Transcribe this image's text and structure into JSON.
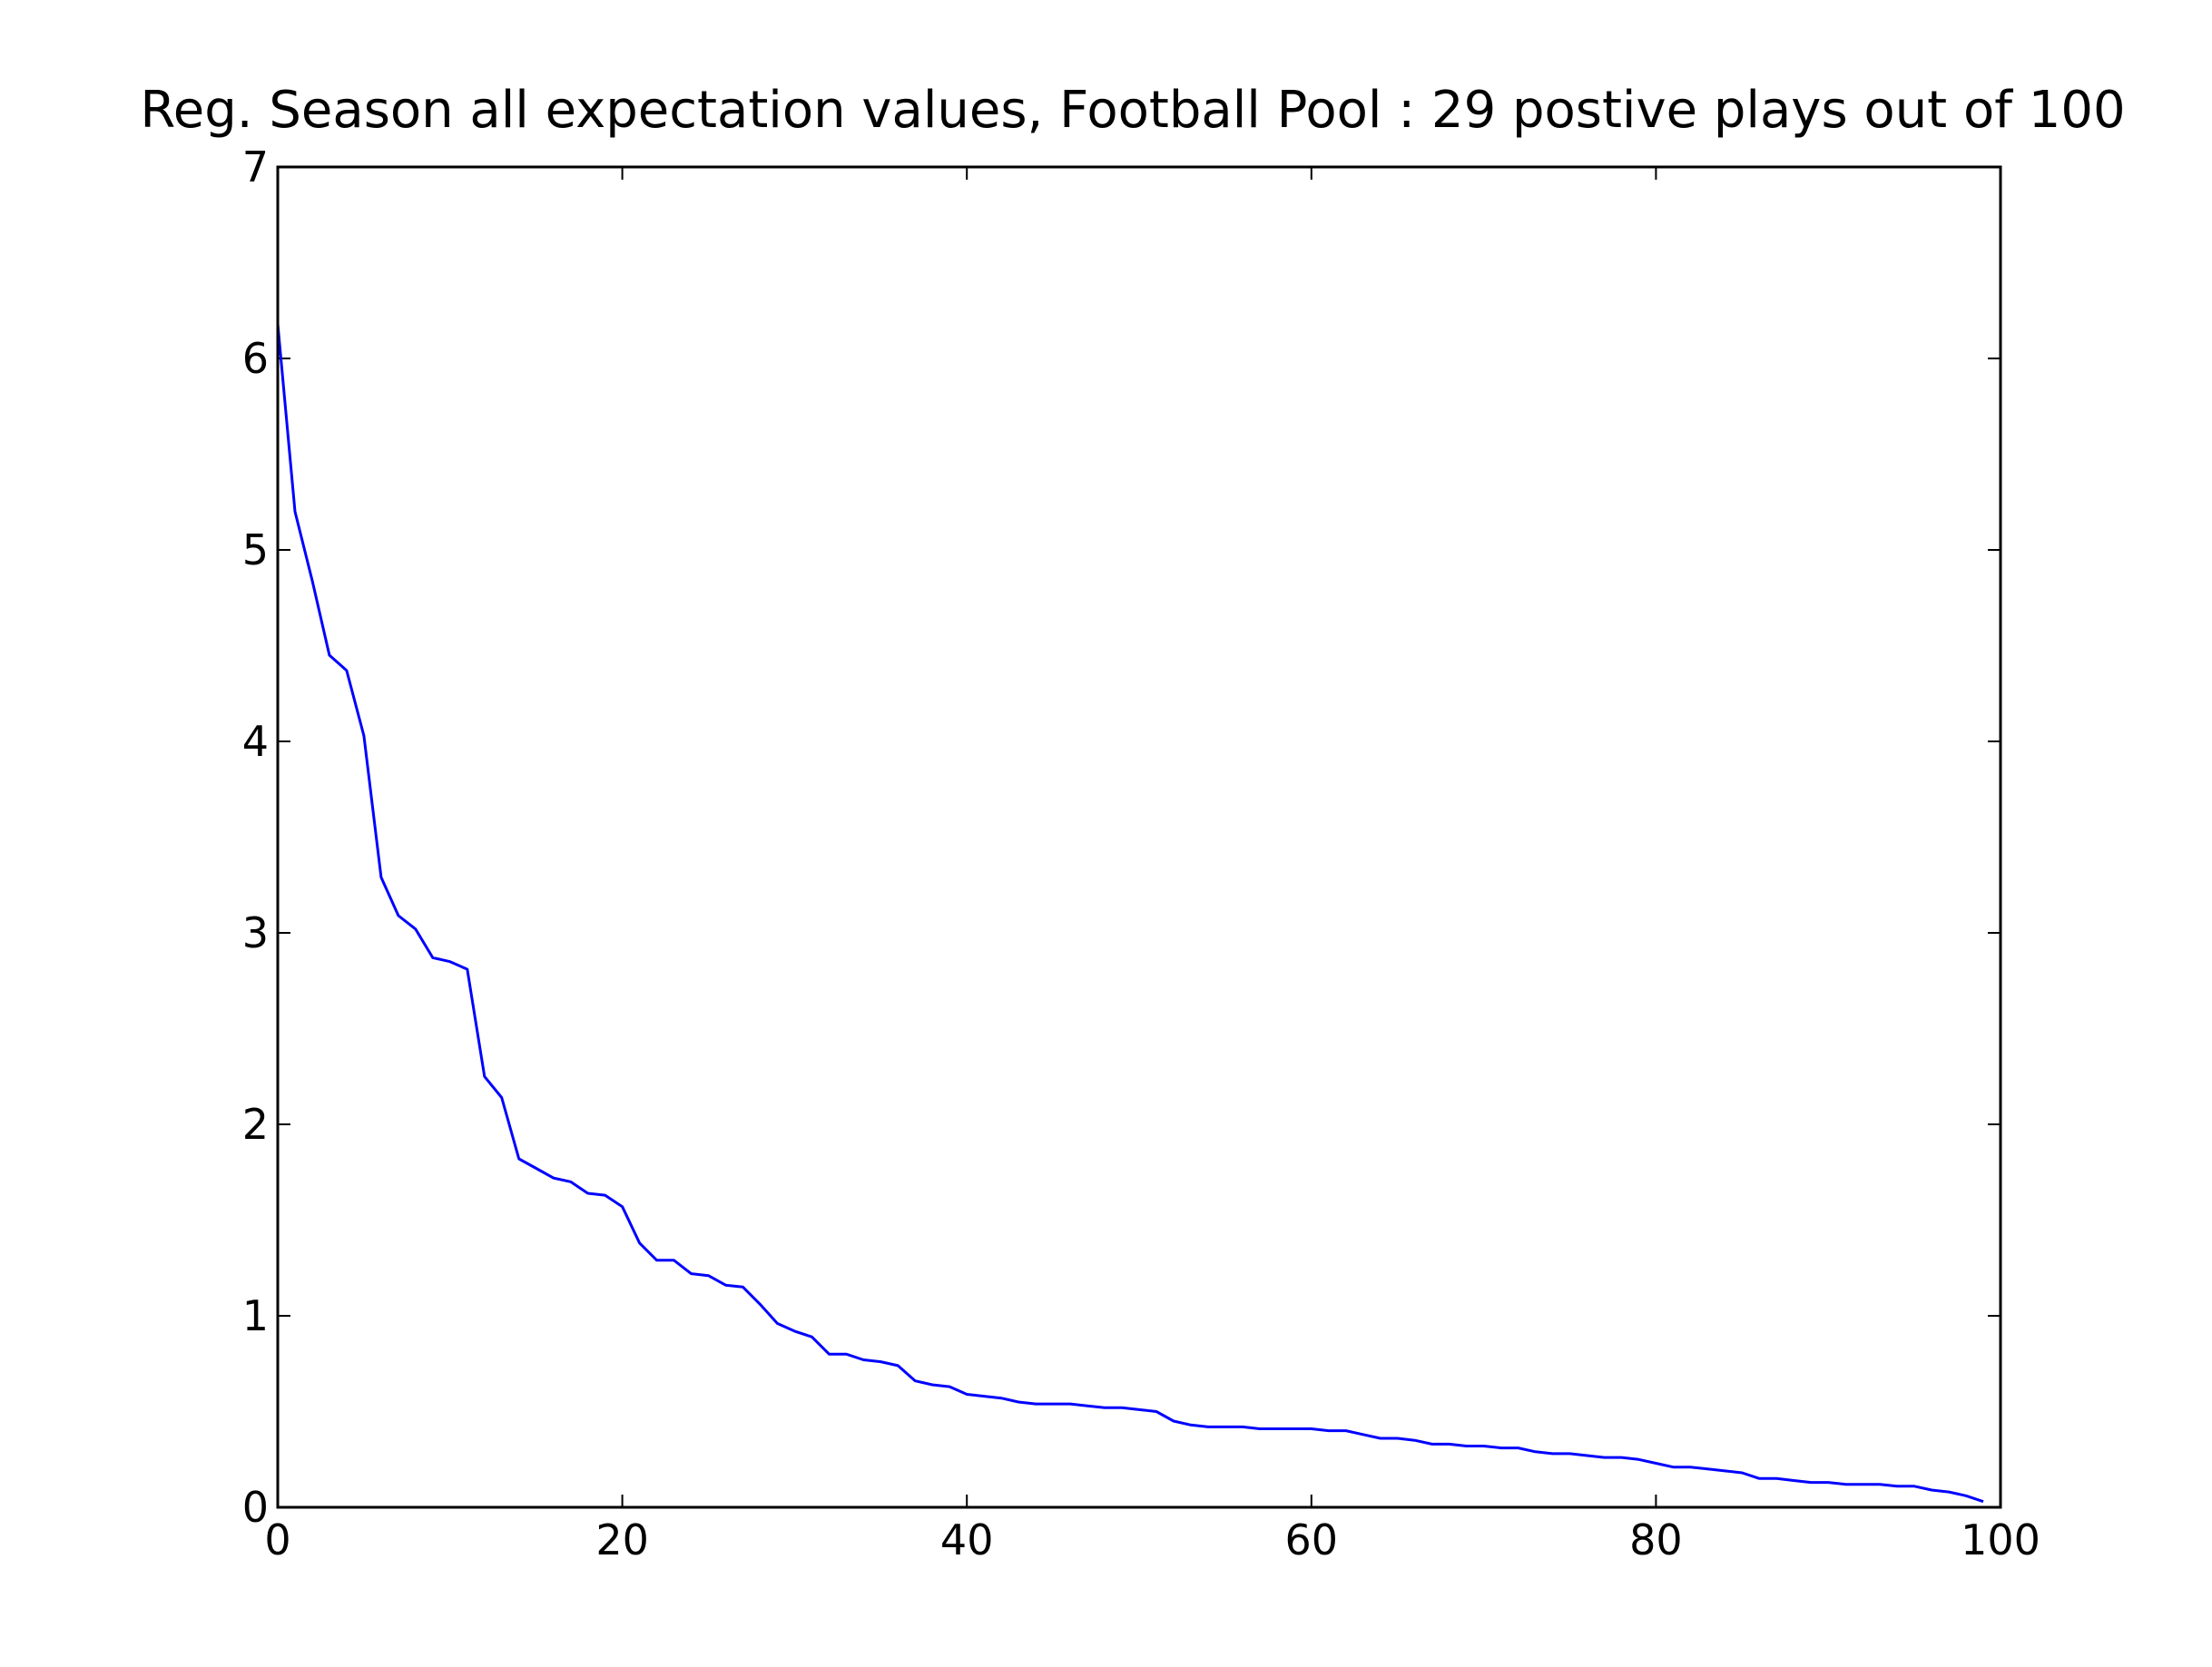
{
  "chart_data": {
    "type": "line",
    "title": "Reg. Season all expectation values, Football Pool : 29 postive plays out of 100",
    "xlabel": "",
    "ylabel": "",
    "xlim": [
      0,
      100
    ],
    "ylim": [
      0,
      7
    ],
    "x_ticks": [
      "0",
      "20",
      "40",
      "60",
      "80",
      "100"
    ],
    "y_ticks": [
      "0",
      "1",
      "2",
      "3",
      "4",
      "5",
      "6",
      "7"
    ],
    "grid": false,
    "line_color": "#0000ff",
    "series": [
      {
        "x": [
          0,
          1,
          2,
          3,
          4,
          5,
          6,
          7,
          8,
          9,
          10,
          11,
          12,
          13,
          14,
          15,
          16,
          17,
          18,
          19,
          20,
          21,
          22,
          23,
          24,
          25,
          26,
          27,
          28,
          29,
          30,
          31,
          32,
          33,
          34,
          35,
          36,
          37,
          38,
          39,
          40,
          41,
          42,
          43,
          44,
          45,
          46,
          47,
          48,
          49,
          50,
          51,
          52,
          53,
          54,
          55,
          56,
          57,
          58,
          59,
          60,
          61,
          62,
          63,
          64,
          65,
          66,
          67,
          68,
          69,
          70,
          71,
          72,
          73,
          74,
          75,
          76,
          77,
          78,
          79,
          80,
          81,
          82,
          83,
          84,
          85,
          86,
          87,
          88,
          89,
          90,
          91,
          92,
          93,
          94,
          95,
          96,
          97,
          98,
          99
        ],
        "values": [
          6.18,
          5.2,
          4.84,
          4.45,
          4.37,
          4.03,
          3.29,
          3.09,
          3.02,
          2.87,
          2.85,
          2.81,
          2.25,
          2.14,
          1.82,
          1.77,
          1.72,
          1.7,
          1.64,
          1.63,
          1.57,
          1.38,
          1.29,
          1.29,
          1.22,
          1.21,
          1.16,
          1.15,
          1.06,
          0.96,
          0.92,
          0.89,
          0.8,
          0.8,
          0.77,
          0.76,
          0.74,
          0.66,
          0.64,
          0.63,
          0.59,
          0.58,
          0.57,
          0.55,
          0.54,
          0.54,
          0.54,
          0.53,
          0.52,
          0.52,
          0.51,
          0.5,
          0.45,
          0.43,
          0.42,
          0.42,
          0.42,
          0.41,
          0.41,
          0.41,
          0.41,
          0.4,
          0.4,
          0.38,
          0.36,
          0.36,
          0.35,
          0.33,
          0.33,
          0.32,
          0.32,
          0.31,
          0.31,
          0.29,
          0.28,
          0.28,
          0.27,
          0.26,
          0.26,
          0.25,
          0.23,
          0.21,
          0.21,
          0.2,
          0.19,
          0.18,
          0.15,
          0.15,
          0.14,
          0.13,
          0.13,
          0.12,
          0.12,
          0.12,
          0.11,
          0.11,
          0.09,
          0.08,
          0.06,
          0.03
        ]
      }
    ]
  }
}
